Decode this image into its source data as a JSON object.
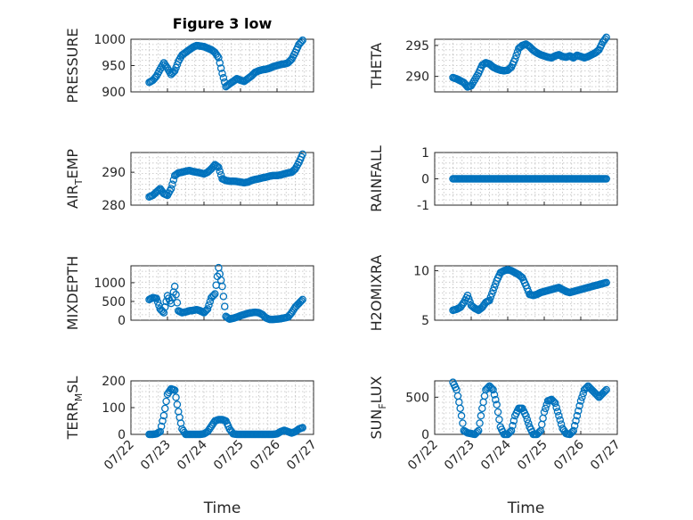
{
  "chart_data": [
    {
      "type": "scatter",
      "title": "Figure 3 low",
      "ylabel": "PRESSURE",
      "ylim": [
        900,
        1000
      ],
      "yticks": [
        "900",
        "950",
        "1000"
      ],
      "xlabel": "",
      "xticks": [],
      "x": [
        0.5,
        0.6,
        0.7,
        0.8,
        0.9,
        1.0,
        1.1,
        1.2,
        1.3,
        1.4,
        1.5,
        1.6,
        1.7,
        1.8,
        1.9,
        2.0,
        2.1,
        2.2,
        2.3,
        2.4,
        2.5,
        2.6,
        2.7,
        2.8,
        2.9,
        3.0,
        3.1,
        3.2,
        3.3,
        3.4,
        3.5,
        3.6,
        3.7,
        3.8,
        3.9,
        4.0,
        4.1,
        4.2,
        4.3,
        4.4,
        4.5,
        4.6,
        4.7
      ],
      "y": [
        918,
        922,
        930,
        943,
        955,
        945,
        933,
        940,
        958,
        970,
        975,
        980,
        985,
        988,
        987,
        986,
        983,
        980,
        975,
        965,
        935,
        910,
        915,
        920,
        925,
        922,
        920,
        925,
        930,
        937,
        940,
        942,
        943,
        945,
        948,
        950,
        952,
        953,
        955,
        962,
        975,
        990,
        998
      ],
      "marker": "o",
      "color": "#0072bd"
    },
    {
      "type": "scatter",
      "ylabel": "THETA",
      "ylim": [
        287.5,
        296
      ],
      "yticks": [
        "290",
        "295"
      ],
      "xlabel": "",
      "xticks": [],
      "x": [
        0.5,
        0.6,
        0.7,
        0.8,
        0.9,
        1.0,
        1.1,
        1.2,
        1.3,
        1.4,
        1.5,
        1.6,
        1.7,
        1.8,
        1.9,
        2.0,
        2.1,
        2.2,
        2.3,
        2.4,
        2.5,
        2.6,
        2.7,
        2.8,
        2.9,
        3.0,
        3.1,
        3.2,
        3.3,
        3.4,
        3.5,
        3.6,
        3.7,
        3.8,
        3.9,
        4.0,
        4.1,
        4.2,
        4.3,
        4.4,
        4.5,
        4.6,
        4.7
      ],
      "y": [
        289.8,
        289.6,
        289.3,
        289.0,
        288.3,
        288.5,
        289.5,
        290.5,
        291.8,
        292.2,
        292.0,
        291.5,
        291.2,
        291.0,
        290.9,
        291.0,
        291.5,
        292.8,
        294.5,
        295.0,
        295.2,
        294.8,
        294.2,
        293.8,
        293.5,
        293.3,
        293.1,
        293.0,
        293.3,
        293.5,
        293.2,
        293.1,
        293.3,
        293.0,
        293.4,
        293.2,
        293.0,
        293.2,
        293.5,
        293.8,
        294.3,
        295.5,
        296.3
      ],
      "marker": "o",
      "color": "#0072bd"
    },
    {
      "type": "scatter",
      "ylabel": "AIR_TEMP",
      "ylim": [
        280,
        296
      ],
      "yticks": [
        "280",
        "290"
      ],
      "xlabel": "",
      "xticks": [],
      "x": [
        0.5,
        0.6,
        0.7,
        0.8,
        0.9,
        1.0,
        1.1,
        1.2,
        1.3,
        1.4,
        1.5,
        1.6,
        1.7,
        1.8,
        1.9,
        2.0,
        2.1,
        2.2,
        2.3,
        2.4,
        2.5,
        2.6,
        2.7,
        2.8,
        2.9,
        3.0,
        3.1,
        3.2,
        3.3,
        3.4,
        3.5,
        3.6,
        3.7,
        3.8,
        3.9,
        4.0,
        4.1,
        4.2,
        4.3,
        4.4,
        4.5,
        4.6,
        4.7
      ],
      "y": [
        282.5,
        283,
        284,
        285,
        283.5,
        283,
        285,
        289,
        289.8,
        290,
        290.3,
        290.5,
        290.2,
        290,
        289.8,
        289.5,
        290,
        291,
        292.3,
        291.5,
        288,
        287.5,
        287.3,
        287.3,
        287.2,
        287,
        286.8,
        287,
        287.5,
        287.8,
        288,
        288.3,
        288.5,
        288.8,
        289,
        289,
        289.2,
        289.5,
        289.8,
        290,
        291,
        293,
        295.5
      ],
      "marker": "o",
      "color": "#0072bd"
    },
    {
      "type": "scatter",
      "ylabel": "RAINFALL",
      "ylim": [
        -1,
        1
      ],
      "yticks": [
        "-1",
        "0",
        "1"
      ],
      "xlabel": "",
      "xticks": [],
      "x": [
        0.5,
        0.6,
        0.7,
        0.8,
        0.9,
        1.0,
        1.1,
        1.2,
        1.3,
        1.4,
        1.5,
        1.6,
        1.7,
        1.8,
        1.9,
        2.0,
        2.1,
        2.2,
        2.3,
        2.4,
        2.5,
        2.6,
        2.7,
        2.8,
        2.9,
        3.0,
        3.1,
        3.2,
        3.3,
        3.4,
        3.5,
        3.6,
        3.7,
        3.8,
        3.9,
        4.0,
        4.1,
        4.2,
        4.3,
        4.4,
        4.5,
        4.6,
        4.7
      ],
      "y": [
        0,
        0,
        0,
        0,
        0,
        0,
        0,
        0,
        0,
        0,
        0,
        0,
        0,
        0,
        0,
        0,
        0,
        0,
        0,
        0,
        0,
        0,
        0,
        0,
        0,
        0,
        0,
        0,
        0,
        0,
        0,
        0,
        0,
        0,
        0,
        0,
        0,
        0,
        0,
        0,
        0,
        0,
        0
      ],
      "marker": "o",
      "color": "#0072bd"
    },
    {
      "type": "scatter",
      "ylabel": "MIXDEPTH",
      "ylim": [
        0,
        1450
      ],
      "yticks": [
        "0",
        "500",
        "1000"
      ],
      "xlabel": "",
      "xticks": [],
      "x": [
        0.5,
        0.6,
        0.7,
        0.8,
        0.9,
        1.0,
        1.1,
        1.2,
        1.3,
        1.4,
        1.5,
        1.6,
        1.7,
        1.8,
        1.9,
        2.0,
        2.1,
        2.2,
        2.3,
        2.4,
        2.5,
        2.6,
        2.7,
        2.8,
        2.9,
        3.0,
        3.1,
        3.2,
        3.3,
        3.4,
        3.5,
        3.6,
        3.7,
        3.8,
        3.9,
        4.0,
        4.1,
        4.2,
        4.3,
        4.4,
        4.5,
        4.6,
        4.7
      ],
      "y": [
        550,
        600,
        580,
        300,
        200,
        650,
        450,
        900,
        250,
        200,
        220,
        250,
        260,
        280,
        250,
        200,
        300,
        600,
        700,
        1400,
        900,
        100,
        30,
        50,
        80,
        120,
        150,
        180,
        200,
        210,
        200,
        150,
        60,
        20,
        20,
        30,
        40,
        60,
        80,
        200,
        350,
        450,
        550
      ],
      "marker": "o",
      "color": "#0072bd"
    },
    {
      "type": "scatter",
      "ylabel": "H2OMIXRA",
      "ylim": [
        5,
        10.5
      ],
      "yticks": [
        "5",
        "10"
      ],
      "xlabel": "",
      "xticks": [],
      "x": [
        0.5,
        0.6,
        0.7,
        0.8,
        0.9,
        1.0,
        1.1,
        1.2,
        1.3,
        1.4,
        1.5,
        1.6,
        1.7,
        1.8,
        1.9,
        2.0,
        2.1,
        2.2,
        2.3,
        2.4,
        2.5,
        2.6,
        2.7,
        2.8,
        2.9,
        3.0,
        3.1,
        3.2,
        3.3,
        3.4,
        3.5,
        3.6,
        3.7,
        3.8,
        3.9,
        4.0,
        4.1,
        4.2,
        4.3,
        4.4,
        4.5,
        4.6,
        4.7
      ],
      "y": [
        6.0,
        6.1,
        6.3,
        6.8,
        7.5,
        6.5,
        6.2,
        6.0,
        6.3,
        6.8,
        7.0,
        8.0,
        9.0,
        9.8,
        10.0,
        10.1,
        10.0,
        9.8,
        9.6,
        9.3,
        8.5,
        7.6,
        7.5,
        7.6,
        7.8,
        7.9,
        8.0,
        8.1,
        8.2,
        8.3,
        8.1,
        7.9,
        7.8,
        7.9,
        8.0,
        8.1,
        8.2,
        8.3,
        8.4,
        8.5,
        8.6,
        8.7,
        8.8
      ],
      "marker": "o",
      "color": "#0072bd"
    },
    {
      "type": "scatter",
      "ylabel": "TERR_MSL",
      "ylim": [
        0,
        200
      ],
      "yticks": [
        "0",
        "100",
        "200"
      ],
      "xlabel": "Time",
      "xticks": [
        "07/22",
        "07/23",
        "07/24",
        "07/25",
        "07/26",
        "07/27"
      ],
      "x": [
        0.5,
        0.6,
        0.7,
        0.8,
        0.9,
        1.0,
        1.1,
        1.2,
        1.3,
        1.4,
        1.5,
        1.6,
        1.7,
        1.8,
        1.9,
        2.0,
        2.1,
        2.2,
        2.3,
        2.4,
        2.5,
        2.6,
        2.7,
        2.8,
        2.9,
        3.0,
        3.1,
        3.2,
        3.3,
        3.4,
        3.5,
        3.6,
        3.7,
        3.8,
        3.9,
        4.0,
        4.1,
        4.2,
        4.3,
        4.4,
        4.5,
        4.6,
        4.7
      ],
      "y": [
        0,
        0,
        2,
        10,
        70,
        150,
        170,
        165,
        85,
        20,
        0,
        0,
        0,
        0,
        0,
        2,
        10,
        30,
        50,
        55,
        55,
        50,
        20,
        2,
        0,
        0,
        0,
        0,
        0,
        0,
        0,
        0,
        0,
        0,
        0,
        2,
        10,
        15,
        10,
        5,
        10,
        20,
        25
      ],
      "marker": "o",
      "color": "#0072bd"
    },
    {
      "type": "scatter",
      "ylabel": "SUN_FLUX",
      "ylim": [
        0,
        720
      ],
      "yticks": [
        "0",
        "500"
      ],
      "xlabel": "Time",
      "xticks": [
        "07/22",
        "07/23",
        "07/24",
        "07/25",
        "07/26",
        "07/27"
      ],
      "x": [
        0.5,
        0.6,
        0.7,
        0.8,
        0.9,
        1.0,
        1.1,
        1.2,
        1.3,
        1.4,
        1.5,
        1.6,
        1.7,
        1.8,
        1.9,
        2.0,
        2.1,
        2.2,
        2.3,
        2.4,
        2.5,
        2.6,
        2.7,
        2.8,
        2.9,
        3.0,
        3.1,
        3.2,
        3.3,
        3.4,
        3.5,
        3.6,
        3.7,
        3.8,
        3.9,
        4.0,
        4.1,
        4.2,
        4.3,
        4.4,
        4.5,
        4.6,
        4.7
      ],
      "y": [
        700,
        600,
        350,
        50,
        20,
        10,
        0,
        50,
        350,
        600,
        650,
        600,
        400,
        100,
        0,
        0,
        50,
        250,
        350,
        350,
        250,
        100,
        0,
        0,
        50,
        300,
        450,
        470,
        420,
        250,
        80,
        10,
        0,
        50,
        250,
        450,
        600,
        650,
        600,
        550,
        500,
        550,
        600
      ],
      "marker": "o",
      "color": "#0072bd"
    }
  ]
}
